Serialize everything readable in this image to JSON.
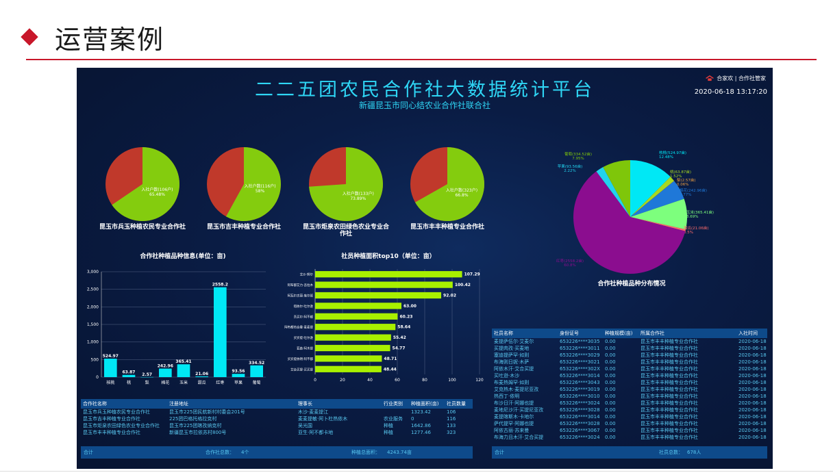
{
  "header": {
    "title": "运营案例"
  },
  "dashboard": {
    "title": "二二五团农民合作社大数据统计平台",
    "subtitle": "新疆昆玉市同心结农业合作社联合社",
    "brand": "合家欢 | 合作社管家",
    "datetime": "2020-06-18 13:17:20"
  },
  "colors": {
    "green": "#84cc0e",
    "red": "#c0392b",
    "cyan": "#00e8f5",
    "lime": "#a8f000"
  },
  "pies": [
    {
      "name": "昆玉市兵玉种植农民专业合作社",
      "label": "入社户数(106户)",
      "pct": "65.48%",
      "ratio": 0.6548
    },
    {
      "name": "昆玉市吉丰种植专业合作社",
      "label": "入社户数(116户)",
      "pct": "58%",
      "ratio": 0.58
    },
    {
      "name": "昆玉市炬泉农田绿色农业专业合作社",
      "label": "入社户数(133户)",
      "pct": "73.89%",
      "ratio": 0.7389
    },
    {
      "name": "昆玉市丰丰种植专业合作社",
      "label": "入社户数(323户)",
      "pct": "66.8%",
      "ratio": 0.668
    }
  ],
  "chart_data": [
    {
      "type": "bar",
      "title": "合作社种植品种信息(单位：亩)",
      "categories": [
        "核桃",
        "桃",
        "梨",
        "棉花",
        "玉米",
        "甜瓜",
        "红枣",
        "苹果",
        "葡萄"
      ],
      "values": [
        524.97,
        63.87,
        2.57,
        242.96,
        365.41,
        21.06,
        2558.2,
        93.56,
        334.52
      ],
      "value_labels": [
        "524.97",
        "63.87",
        "2.57",
        "242.96",
        "365.41",
        "21.06",
        "2558.2",
        "93.56",
        "334.52"
      ],
      "ylim": [
        0,
        3000
      ],
      "yticks": [
        "0",
        "500",
        "1,000",
        "1,500",
        "2,000",
        "2,500",
        "3,000"
      ],
      "color": "#00e8f5"
    },
    {
      "type": "bar",
      "orientation": "horizontal",
      "title": "社员种植面积top10（单位：亩）",
      "categories": [
        "艾沙·努尔",
        "阿布都艾力·吾拉木",
        "阿瓦尔古丽·库尔班",
        "塔依尔·吐尔逊",
        "吾买尔·阿不都",
        "阿布都热合曼·麦麦提",
        "买买提·吐尔逊",
        "亚森·阿木提",
        "买买提依明·阿不都",
        "艾合买提·买买提"
      ],
      "values": [
        107.29,
        100.42,
        92.02,
        63.0,
        60.23,
        58.64,
        55.42,
        54.77,
        48.71,
        48.44
      ],
      "value_labels": [
        "107.29",
        "100.42",
        "92.02",
        "63.00",
        "60.23",
        "58.64",
        "55.42",
        "54.77",
        "48.71",
        "48.44"
      ],
      "xlim": [
        0,
        120
      ],
      "xticks": [
        "0",
        "20",
        "40",
        "60",
        "80",
        "100",
        "120"
      ],
      "color": "#a8f000"
    },
    {
      "type": "pie",
      "title": "合作社种植品种分布情况",
      "slices": [
        {
          "name": "核桃",
          "label": "核桃(524.97亩)",
          "pct": "12.48%",
          "value": 524.97,
          "color": "#00e8f5"
        },
        {
          "name": "桃",
          "label": "桃(63.87亩)",
          "pct": "1.52%",
          "value": 63.87,
          "color": "#a8d820"
        },
        {
          "name": "梨",
          "label": "梨(2.57亩)",
          "pct": "0.06%",
          "value": 2.57,
          "color": "#f0a040"
        },
        {
          "name": "棉花",
          "label": "棉花(242.96亩)",
          "pct": "5.77%",
          "value": 242.96,
          "color": "#1f78d8"
        },
        {
          "name": "玉米",
          "label": "玉米(365.41亩)",
          "pct": "8.69%",
          "value": 365.41,
          "color": "#7dff7d"
        },
        {
          "name": "甜瓜",
          "label": "甜瓜(21.06亩)",
          "pct": "0.5%",
          "value": 21.06,
          "color": "#ff6b6b"
        },
        {
          "name": "红枣",
          "label": "红枣(2558.2亩)",
          "pct": "60.8%",
          "value": 2558.2,
          "color": "#8b0d8f"
        },
        {
          "name": "苹果",
          "label": "苹果(93.56亩)",
          "pct": "2.22%",
          "value": 93.56,
          "color": "#22d3ee"
        },
        {
          "name": "葡萄",
          "label": "葡萄(334.52亩)",
          "pct": "7.95%",
          "value": 334.52,
          "color": "#7fc60a"
        }
      ]
    }
  ],
  "coop_table": {
    "headers": [
      "合作社名称",
      "注册地址",
      "理事长",
      "行业类别",
      "种植面积(亩)",
      "社员数量"
    ],
    "rows": [
      [
        "昆玉市兵玉种植农民专业合作社",
        "昆玉市225团民航新村村委会201号",
        "木沙·麦麦提江",
        "",
        "1323.42",
        "106"
      ],
      [
        "昆玉市吉丰种植专业合作社",
        "225团巴格托格拉克村",
        "麦麦提敏·阿卜杜热依木",
        "农业服务",
        "0",
        "116"
      ],
      [
        "昆玉市炬泉农田绿色农业专业合作社",
        "昆玉市225团喀孜纳克村",
        "吴光国",
        "种植",
        "1642.86",
        "133"
      ],
      [
        "昆玉市丰丰种植专业合作社",
        "新疆昆玉市拉依苏村800号",
        "亚生·阿不都卡地",
        "种植",
        "1277.46",
        "323"
      ]
    ],
    "footer": {
      "label": "合计",
      "count_label": "合作社总数：",
      "count": "4个",
      "area_label": "种植总面积：",
      "area": "4243.74亩"
    }
  },
  "member_table": {
    "headers": [
      "社员名称",
      "身份证号",
      "种植规模(亩)",
      "所属合作社",
      "入社时间"
    ],
    "rows": [
      [
        "麦提萨伍尔·艾麦尔",
        "653226****3035",
        "0.00",
        "昆玉市丰丰种植专业合作社",
        "2020-06-18"
      ],
      [
        "买提肉孜·买麦地",
        "653226****3011",
        "0.00",
        "昆玉市丰丰种植专业合作社",
        "2020-06-18"
      ],
      [
        "塞迪提萨罕·如则",
        "653226****3029",
        "0.00",
        "昆玉市丰丰种植专业合作社",
        "2020-06-18"
      ],
      [
        "布海则日妮·木萨",
        "653226****3021",
        "0.00",
        "昆玉市丰丰种植专业合作社",
        "2020-06-18"
      ],
      [
        "阿依木汗·艾合买提",
        "653226****302X",
        "0.00",
        "昆玉市丰丰种植专业合作社",
        "2020-06-18"
      ],
      [
        "买吐逊·木沙",
        "653226****3014",
        "0.00",
        "昆玉市丰丰种植专业合作社",
        "2020-06-18"
      ],
      [
        "布麦热姆罕·如则",
        "653226****3043",
        "0.00",
        "昆玉市丰丰种植专业合作社",
        "2020-06-18"
      ],
      [
        "艾克热木·麦提尼亚孜",
        "653226****3019",
        "0.00",
        "昆玉市丰丰种植专业合作社",
        "2020-06-18"
      ],
      [
        "热西丁·依明",
        "653226****3010",
        "0.00",
        "昆玉市丰丰种植专业合作社",
        "2020-06-18"
      ],
      [
        "布沙日汗·阿娜也提",
        "653226****3024",
        "0.00",
        "昆玉市丰丰种植专业合作社",
        "2020-06-18"
      ],
      [
        "麦地尼沙汗·买提尼亚孜",
        "653226****3028",
        "0.00",
        "昆玉市丰丰种植专业合作社",
        "2020-06-18"
      ],
      [
        "麦提喀斯木·卡地尔",
        "653226****3014",
        "0.00",
        "昆玉市丰丰种植专业合作社",
        "2020-06-18"
      ],
      [
        "萨代提罕·阿娜也提",
        "653226****3028",
        "0.00",
        "昆玉市丰丰种植专业合作社",
        "2020-06-18"
      ],
      [
        "阿依古丽·苏来曼",
        "653226****3067",
        "0.00",
        "昆玉市丰丰种植专业合作社",
        "2020-06-18"
      ],
      [
        "布海力且木汗·艾合买提",
        "653226****3024",
        "0.00",
        "昆玉市丰丰种植专业合作社",
        "2020-06-18"
      ]
    ],
    "footer": {
      "label": "合计",
      "count_label": "社员总数：",
      "count": "678人"
    }
  }
}
